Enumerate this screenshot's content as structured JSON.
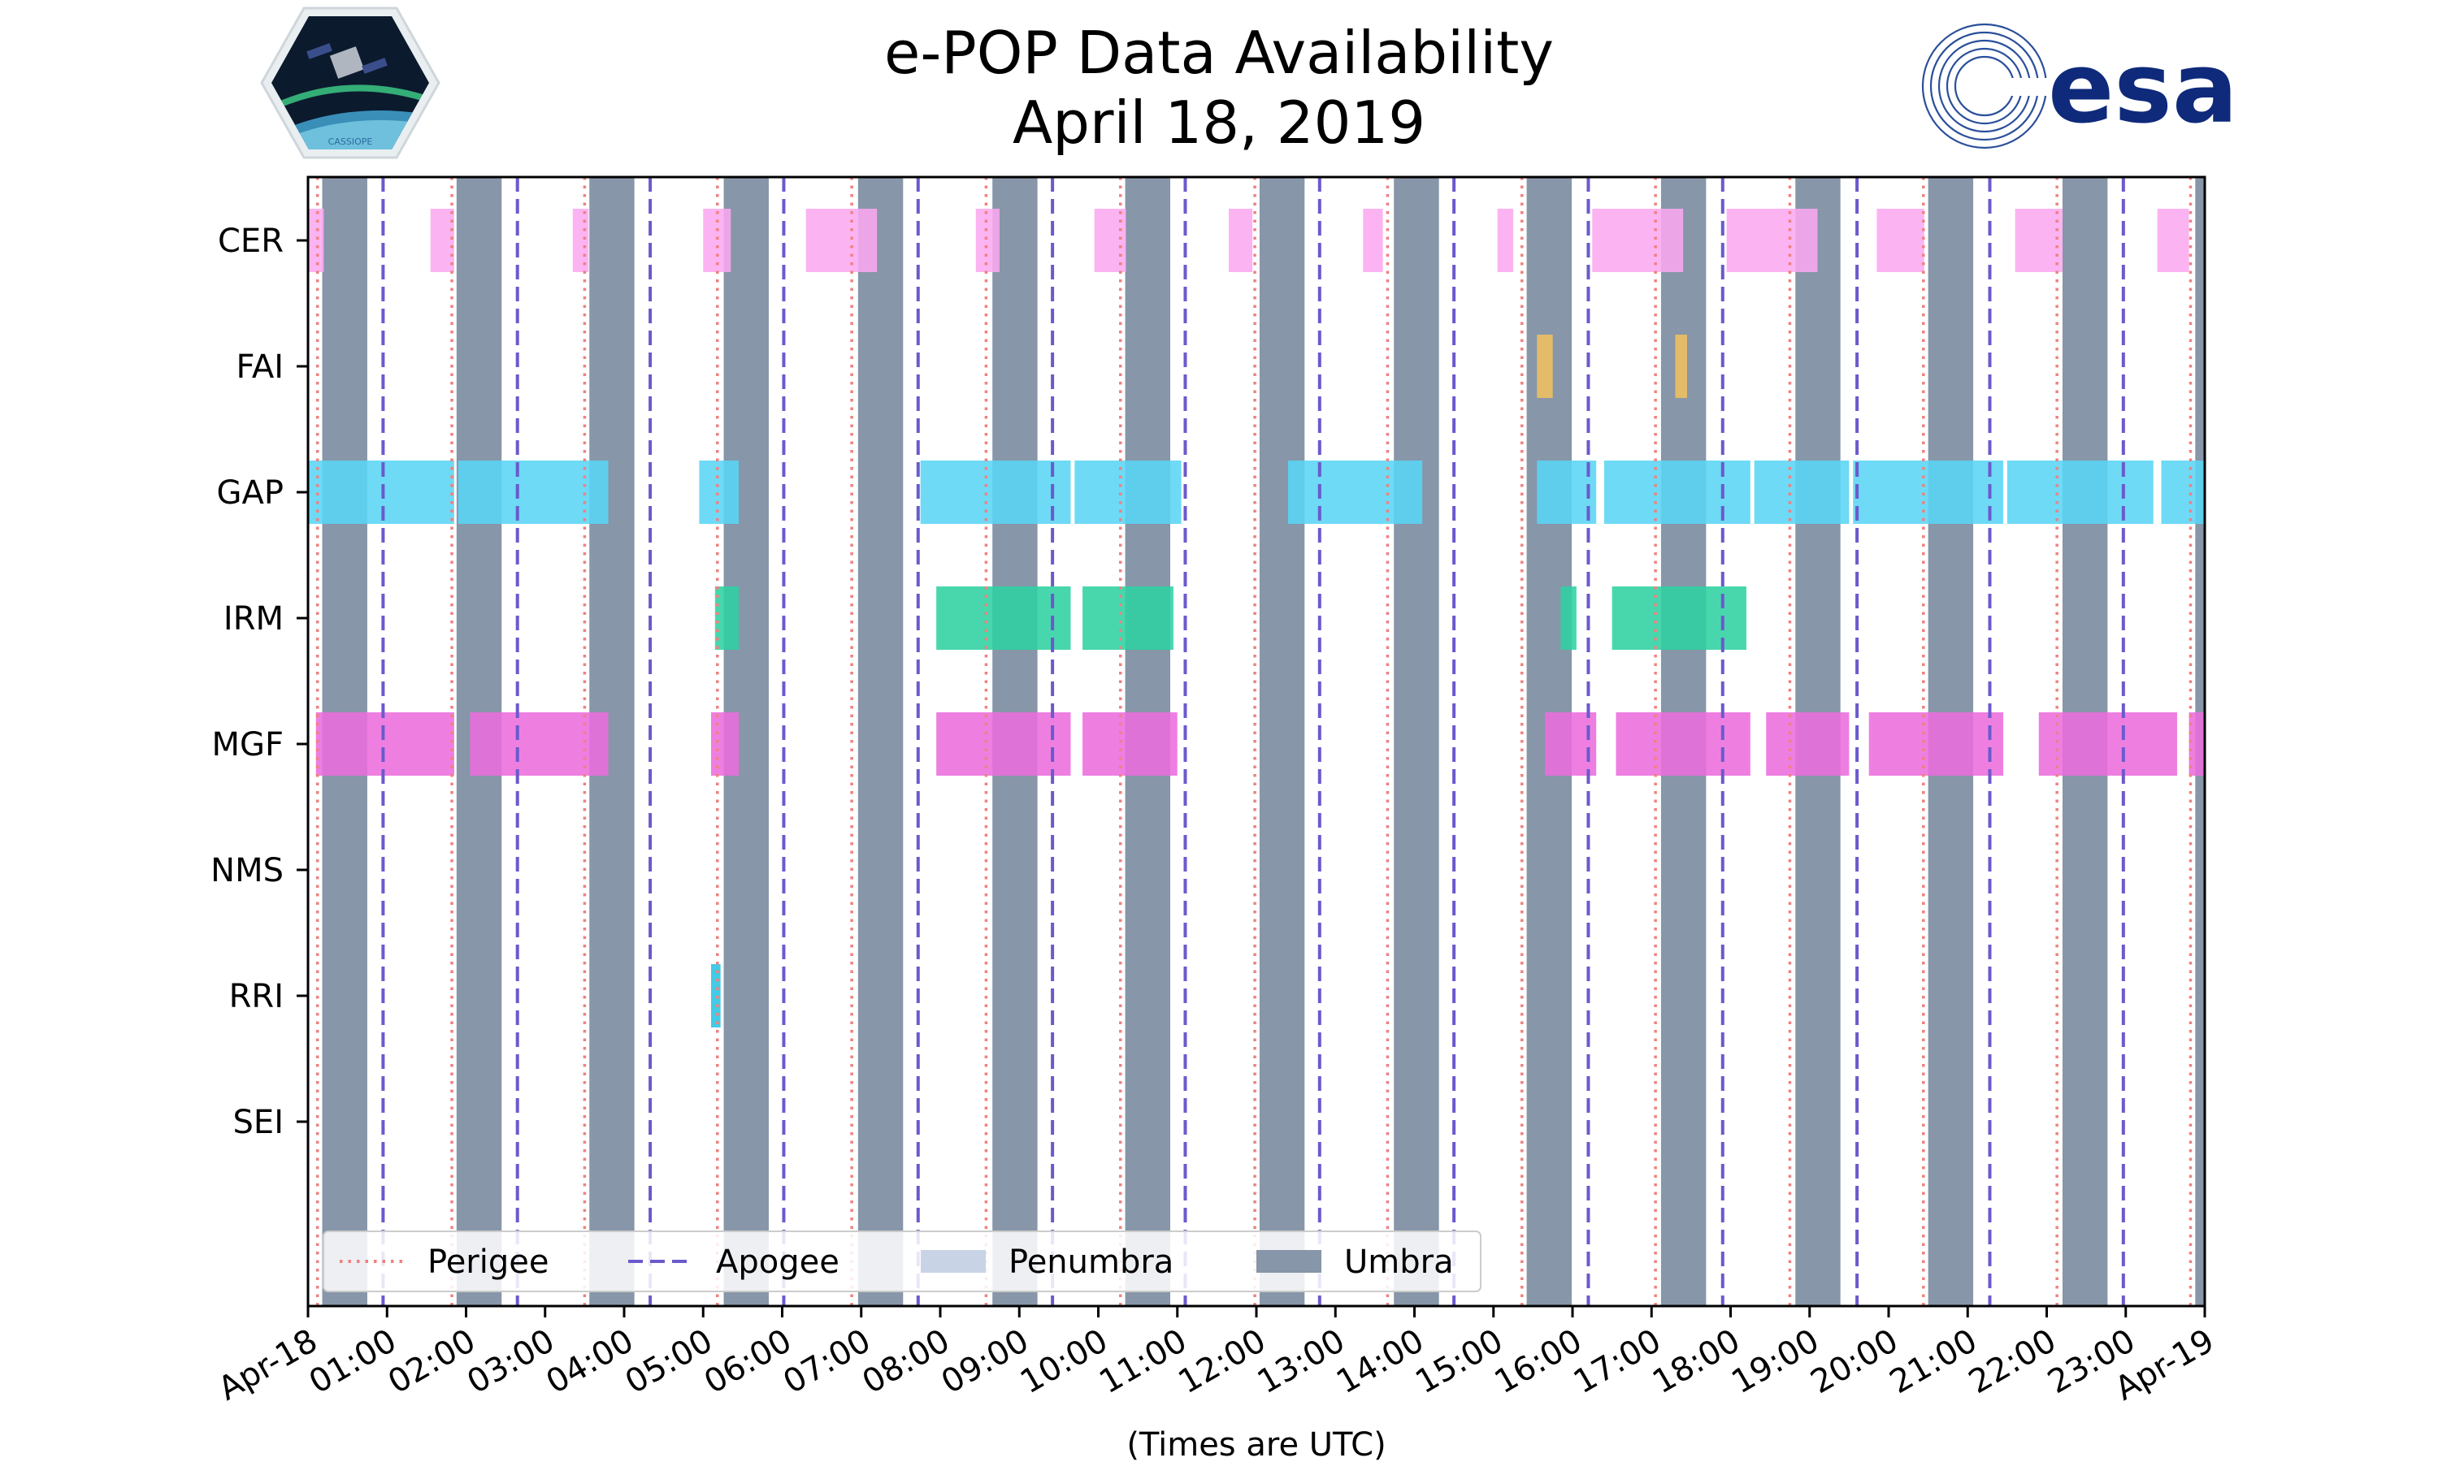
{
  "header": {
    "title_line1": "e-POP Data Availability",
    "title_line2": "April 18, 2019",
    "cassiope_logo_text": "CASSIOPE",
    "esa_logo_text": "esa"
  },
  "colors": {
    "perigee": "#f08080",
    "apogee": "#6a5acd",
    "penumbra": "#c8d4e6",
    "umbra": "#8796a8",
    "CER": "#fba8f0",
    "FAI": "#f0c060",
    "GAP": "#5ad5f5",
    "IRM": "#2fd2a2",
    "MGF": "#ec6ddd",
    "RRI": "#27c4e2"
  },
  "chart_data": {
    "type": "timeline",
    "title": "e-POP Data Availability — April 18, 2019",
    "xlabel": "(Times are UTC)",
    "ylabel": "",
    "x_unit": "hours UTC",
    "xlim": [
      0,
      24
    ],
    "x_tick_values": [
      0,
      1,
      2,
      3,
      4,
      5,
      6,
      7,
      8,
      9,
      10,
      11,
      12,
      13,
      14,
      15,
      16,
      17,
      18,
      19,
      20,
      21,
      22,
      23,
      24
    ],
    "x_tick_labels": [
      "Apr-18",
      "01:00",
      "02:00",
      "03:00",
      "04:00",
      "05:00",
      "06:00",
      "07:00",
      "08:00",
      "09:00",
      "10:00",
      "11:00",
      "12:00",
      "13:00",
      "14:00",
      "15:00",
      "16:00",
      "17:00",
      "18:00",
      "19:00",
      "20:00",
      "21:00",
      "22:00",
      "23:00",
      "Apr-19"
    ],
    "instruments": [
      "CER",
      "FAI",
      "GAP",
      "IRM",
      "MGF",
      "NMS",
      "RRI",
      "SEI"
    ],
    "perigee_times": [
      0.12,
      1.82,
      3.5,
      5.18,
      6.88,
      8.58,
      10.28,
      11.98,
      13.66,
      15.36,
      17.05,
      18.75,
      20.44,
      22.13,
      23.82
    ],
    "apogee_times": [
      0.95,
      2.65,
      4.33,
      6.02,
      7.72,
      9.42,
      11.1,
      12.8,
      14.5,
      16.2,
      17.9,
      19.6,
      21.28,
      22.97
    ],
    "umbra_intervals": [
      [
        0.18,
        0.75
      ],
      [
        1.88,
        2.45
      ],
      [
        3.56,
        4.13
      ],
      [
        5.26,
        5.83
      ],
      [
        6.96,
        7.53
      ],
      [
        8.66,
        9.23
      ],
      [
        10.34,
        10.91
      ],
      [
        12.04,
        12.61
      ],
      [
        13.74,
        14.31
      ],
      [
        15.42,
        15.99
      ],
      [
        17.12,
        17.69
      ],
      [
        18.82,
        19.39
      ],
      [
        20.5,
        21.07
      ],
      [
        22.2,
        22.77
      ],
      [
        23.88,
        24.0
      ]
    ],
    "penumbra_intervals": [],
    "availability": {
      "CER": [
        [
          0.0,
          0.2
        ],
        [
          1.55,
          1.85
        ],
        [
          3.35,
          3.55
        ],
        [
          5.0,
          5.35
        ],
        [
          6.3,
          7.2
        ],
        [
          8.45,
          8.75
        ],
        [
          9.95,
          10.35
        ],
        [
          11.65,
          11.95
        ],
        [
          13.35,
          13.6
        ],
        [
          15.05,
          15.25
        ],
        [
          16.25,
          17.4
        ],
        [
          17.95,
          19.1
        ],
        [
          19.85,
          20.45
        ],
        [
          21.6,
          22.2
        ],
        [
          23.4,
          23.8
        ]
      ],
      "FAI": [
        [
          15.55,
          15.75
        ],
        [
          17.3,
          17.45
        ]
      ],
      "GAP": [
        [
          0.0,
          1.85
        ],
        [
          1.9,
          3.8
        ],
        [
          4.95,
          5.45
        ],
        [
          7.75,
          9.65
        ],
        [
          9.7,
          11.05
        ],
        [
          12.4,
          14.1
        ],
        [
          15.55,
          16.3
        ],
        [
          16.4,
          18.25
        ],
        [
          18.3,
          19.5
        ],
        [
          19.55,
          21.45
        ],
        [
          21.5,
          23.35
        ],
        [
          23.45,
          24.0
        ]
      ],
      "IRM": [
        [
          5.15,
          5.45
        ],
        [
          7.95,
          9.65
        ],
        [
          9.8,
          10.95
        ],
        [
          15.85,
          16.05
        ],
        [
          16.5,
          18.2
        ]
      ],
      "MGF": [
        [
          0.1,
          1.85
        ],
        [
          2.05,
          3.8
        ],
        [
          5.1,
          5.45
        ],
        [
          7.95,
          9.65
        ],
        [
          9.8,
          11.0
        ],
        [
          15.65,
          16.3
        ],
        [
          16.55,
          18.25
        ],
        [
          18.45,
          19.5
        ],
        [
          19.75,
          21.45
        ],
        [
          21.9,
          23.65
        ],
        [
          23.8,
          24.0
        ]
      ],
      "NMS": [],
      "RRI": [
        [
          5.1,
          5.22
        ]
      ],
      "SEI": []
    },
    "legend": {
      "position": "bottom-left",
      "entries": [
        "Perigee",
        "Apogee",
        "Penumbra",
        "Umbra"
      ]
    }
  }
}
